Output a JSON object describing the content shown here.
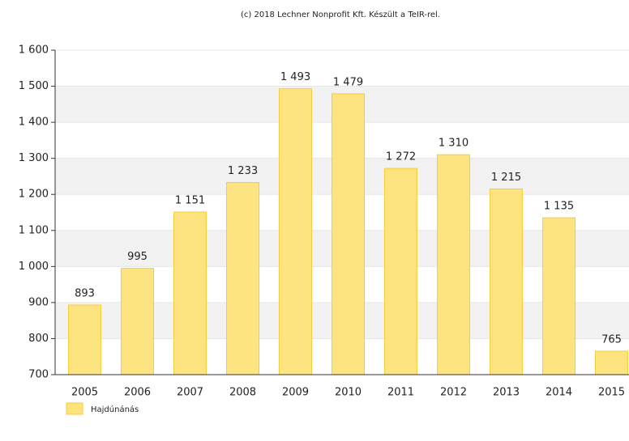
{
  "chart_data": {
    "type": "bar",
    "title": "(c) 2018 Lechner Nonprofit Kft. Készült a TeIR-rel.",
    "categories": [
      "2005",
      "2006",
      "2007",
      "2008",
      "2009",
      "2010",
      "2011",
      "2012",
      "2013",
      "2014",
      "2015"
    ],
    "series": [
      {
        "name": "Hajdúnánás",
        "color": "#fde37a",
        "values": [
          893,
          995,
          1151,
          1233,
          1493,
          1479,
          1272,
          1310,
          1215,
          1135,
          765
        ],
        "value_labels": [
          "893",
          "995",
          "1 151",
          "1 233",
          "1 493",
          "1 479",
          "1 272",
          "1 310",
          "1 215",
          "1 135",
          "765"
        ]
      }
    ],
    "ylim": [
      700,
      1600
    ],
    "yticks": [
      700,
      800,
      900,
      {
        "value": 1000,
        "label": "1 000"
      },
      {
        "value": 1100,
        "label": "1 100"
      },
      {
        "value": 1200,
        "label": "1 200"
      },
      {
        "value": 1300,
        "label": "1 300"
      },
      {
        "value": 1400,
        "label": "1 400"
      },
      {
        "value": 1500,
        "label": "1 500"
      },
      {
        "value": 1600,
        "label": "1 600"
      }
    ],
    "grid": true
  }
}
